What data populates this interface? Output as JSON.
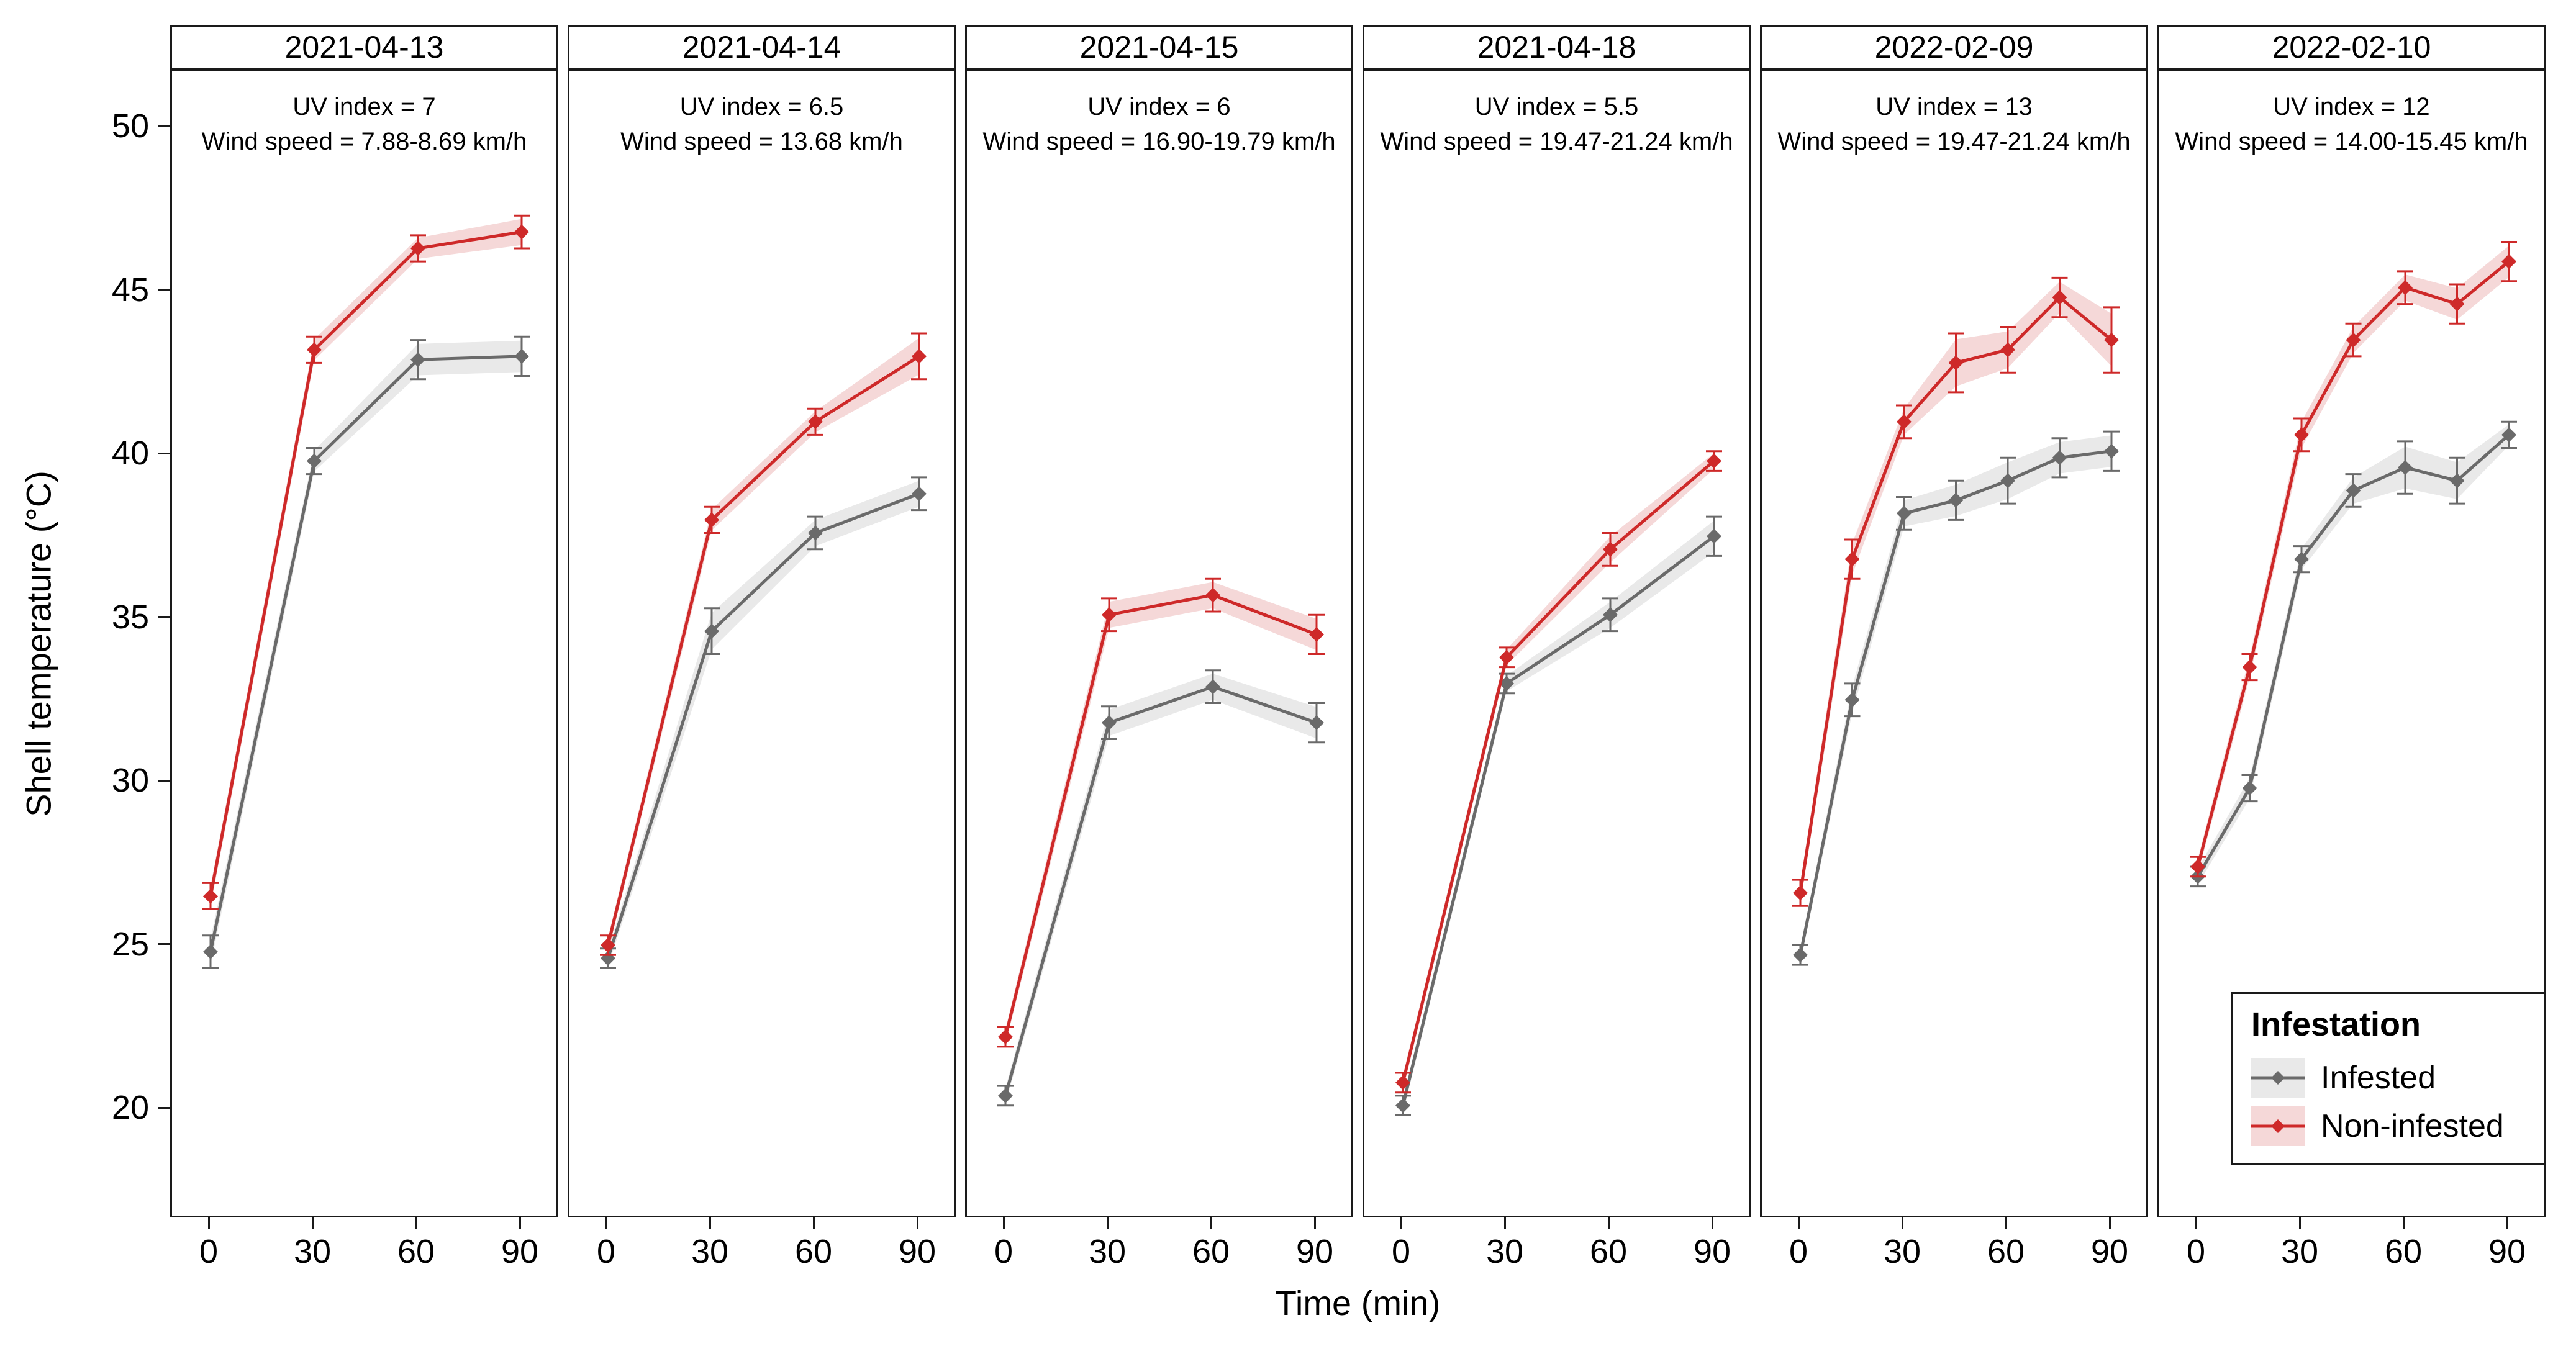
{
  "figure": {
    "y_axis": {
      "title": "Shell temperature (°C)",
      "ticks": [
        50,
        45,
        40,
        35,
        30,
        25,
        20
      ]
    },
    "x_axis": {
      "title": "Time (min)",
      "ticks": [
        0,
        30,
        60,
        90
      ]
    },
    "legend": {
      "title": "Infestation",
      "items": [
        {
          "label": "Infested",
          "color": "#6A6A6A",
          "fill": "#E9E9E9"
        },
        {
          "label": "Non-infested",
          "color": "#CE2929",
          "fill": "#F5D8D8"
        }
      ]
    }
  },
  "chart_data": {
    "type": "line",
    "title": "",
    "xlabel": "Time (min)",
    "ylabel": "Shell temperature (°C)",
    "ylim": [
      16.5,
      51.7
    ],
    "x_ticks": [
      0,
      30,
      60,
      90
    ],
    "y_ticks": [
      20,
      25,
      30,
      35,
      40,
      45,
      50
    ],
    "grid": false,
    "legend_position": "bottom-right inside last facet",
    "facets": [
      {
        "title": "2021-04-13",
        "annotation": [
          "UV index = 7",
          "Wind speed = 7.88-8.69 km/h"
        ],
        "x": [
          0,
          30,
          60,
          90
        ],
        "series": [
          {
            "name": "Infested",
            "values": [
              24.8,
              39.8,
              42.9,
              43.0
            ],
            "error": [
              0.5,
              0.4,
              0.6,
              0.6
            ]
          },
          {
            "name": "Non-infested",
            "values": [
              26.5,
              43.2,
              46.3,
              46.8
            ],
            "error": [
              0.4,
              0.4,
              0.4,
              0.5
            ]
          }
        ]
      },
      {
        "title": "2021-04-14",
        "annotation": [
          "UV index = 6.5",
          "Wind speed = 13.68 km/h"
        ],
        "x": [
          0,
          30,
          60,
          90
        ],
        "series": [
          {
            "name": "Infested",
            "values": [
              24.6,
              34.6,
              37.6,
              38.8
            ],
            "error": [
              0.3,
              0.7,
              0.5,
              0.5
            ]
          },
          {
            "name": "Non-infested",
            "values": [
              25.0,
              38.0,
              41.0,
              43.0
            ],
            "error": [
              0.3,
              0.4,
              0.4,
              0.7
            ]
          }
        ]
      },
      {
        "title": "2021-04-15",
        "annotation": [
          "UV index = 6",
          "Wind speed = 16.90-19.79 km/h"
        ],
        "x": [
          0,
          30,
          60,
          90
        ],
        "series": [
          {
            "name": "Infested",
            "values": [
              20.4,
              31.8,
              32.9,
              31.8
            ],
            "error": [
              0.3,
              0.5,
              0.5,
              0.6
            ]
          },
          {
            "name": "Non-infested",
            "values": [
              22.2,
              35.1,
              35.7,
              34.5
            ],
            "error": [
              0.3,
              0.5,
              0.5,
              0.6
            ]
          }
        ]
      },
      {
        "title": "2021-04-18",
        "annotation": [
          "UV index = 5.5",
          "Wind speed = 19.47-21.24 km/h"
        ],
        "x": [
          0,
          30,
          60,
          90
        ],
        "series": [
          {
            "name": "Infested",
            "values": [
              20.1,
              33.0,
              35.1,
              37.5
            ],
            "error": [
              0.3,
              0.3,
              0.5,
              0.6
            ]
          },
          {
            "name": "Non-infested",
            "values": [
              20.8,
              33.8,
              37.1,
              39.8
            ],
            "error": [
              0.3,
              0.3,
              0.5,
              0.3
            ]
          }
        ]
      },
      {
        "title": "2022-02-09",
        "annotation": [
          "UV index = 13",
          "Wind speed = 19.47-21.24 km/h"
        ],
        "x": [
          0,
          15,
          30,
          45,
          60,
          75,
          90
        ],
        "series": [
          {
            "name": "Infested",
            "values": [
              24.7,
              32.5,
              38.2,
              38.6,
              39.2,
              39.9,
              40.1
            ],
            "error": [
              0.3,
              0.5,
              0.5,
              0.6,
              0.7,
              0.6,
              0.6
            ]
          },
          {
            "name": "Non-infested",
            "values": [
              26.6,
              36.8,
              41.0,
              42.8,
              43.2,
              44.8,
              43.5
            ],
            "error": [
              0.4,
              0.6,
              0.5,
              0.9,
              0.7,
              0.6,
              1.0
            ]
          }
        ]
      },
      {
        "title": "2022-02-10",
        "annotation": [
          "UV index = 12",
          "Wind speed = 14.00-15.45 km/h"
        ],
        "x": [
          0,
          15,
          30,
          45,
          60,
          75,
          90
        ],
        "series": [
          {
            "name": "Infested",
            "values": [
              27.1,
              29.8,
              36.8,
              38.9,
              39.6,
              39.2,
              40.6
            ],
            "error": [
              0.3,
              0.4,
              0.4,
              0.5,
              0.8,
              0.7,
              0.4
            ]
          },
          {
            "name": "Non-infested",
            "values": [
              27.4,
              33.5,
              40.6,
              43.5,
              45.1,
              44.6,
              45.9
            ],
            "error": [
              0.3,
              0.4,
              0.5,
              0.5,
              0.5,
              0.6,
              0.6
            ]
          }
        ]
      }
    ]
  }
}
